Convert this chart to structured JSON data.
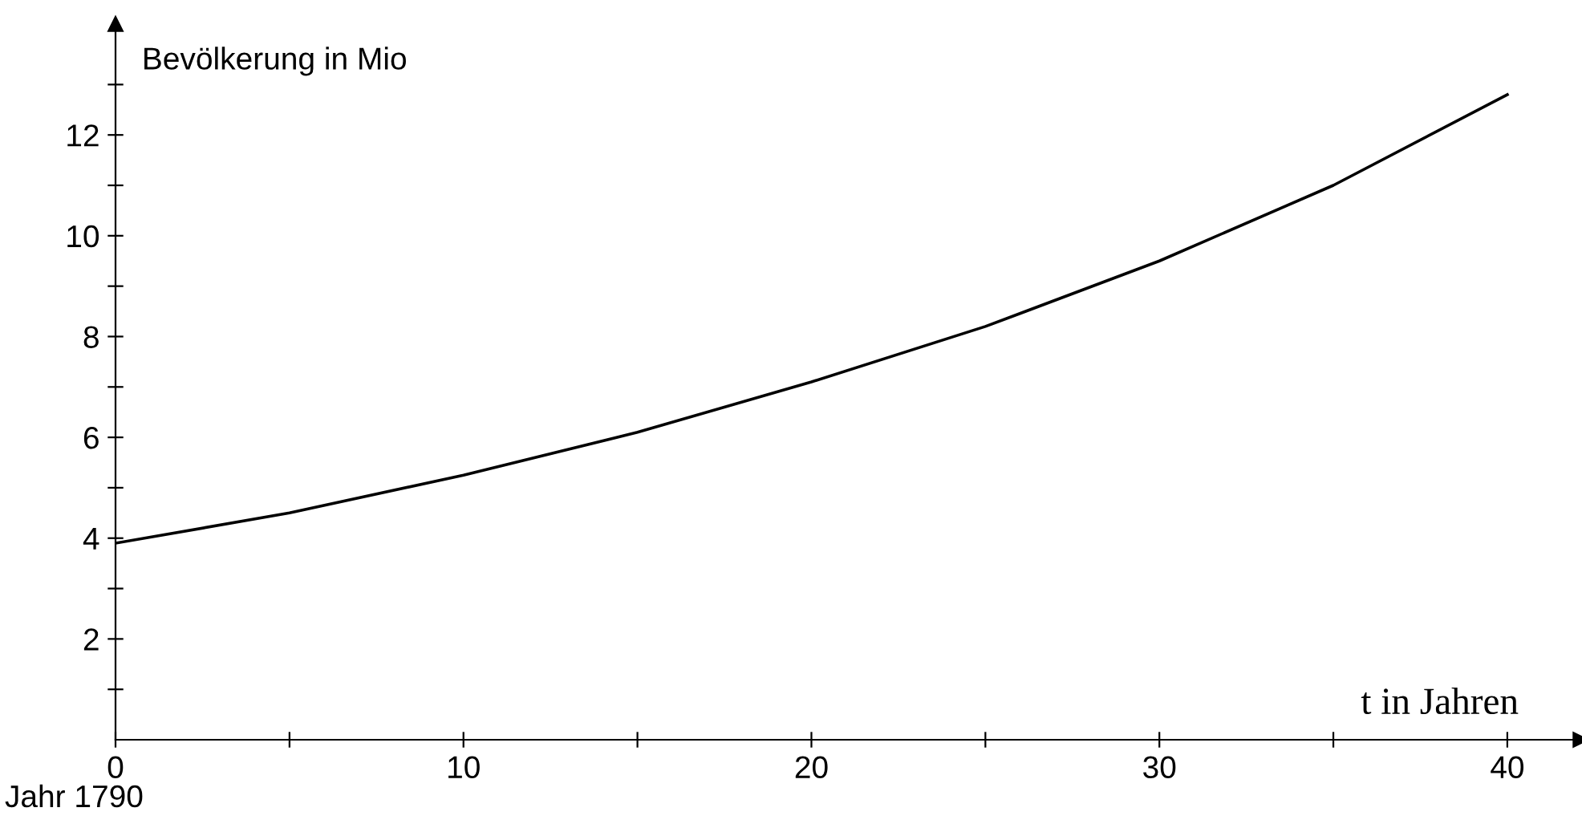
{
  "chart_data": {
    "type": "line",
    "xlabel": "t in Jahren",
    "ylabel": "Bevölkerung in Mio",
    "annotations": [
      "Jahr 1790"
    ],
    "x": [
      0,
      5,
      10,
      15,
      20,
      25,
      30,
      35,
      40
    ],
    "series": [
      {
        "color": "#000000",
        "values": [
          3.9,
          4.5,
          5.25,
          6.1,
          7.1,
          8.2,
          9.5,
          11.0,
          12.8
        ]
      }
    ],
    "xlim": [
      0,
      42.1
    ],
    "ylim": [
      0,
      14.2
    ],
    "xticks": [
      0,
      {
        "value": 5,
        "label": null
      },
      10,
      {
        "value": 15,
        "label": null
      },
      20,
      {
        "value": 25,
        "label": null
      },
      30,
      {
        "value": 35,
        "label": null
      },
      40
    ],
    "yticks": [
      {
        "value": 1,
        "label": null
      },
      2,
      {
        "value": 3,
        "label": null
      },
      4,
      {
        "value": 5,
        "label": null
      },
      6,
      {
        "value": 7,
        "label": null
      },
      8,
      {
        "value": 9,
        "label": null
      },
      10,
      {
        "value": 11,
        "label": null
      },
      12,
      {
        "value": 13,
        "label": null
      }
    ],
    "grid": false,
    "legend": false,
    "marker": "none",
    "line_style": "solid"
  }
}
